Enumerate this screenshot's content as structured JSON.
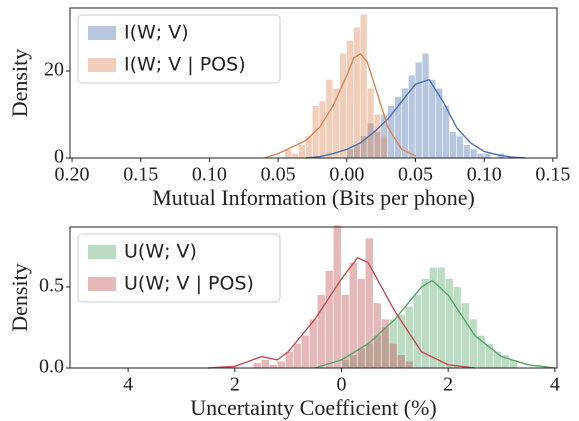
{
  "chart_data": [
    {
      "type": "histogram",
      "xlabel": "Mutual Information (Bits per phone)",
      "ylabel": "Density",
      "xlim": [
        -0.2015,
        0.153
      ],
      "ylim": [
        0,
        34.5
      ],
      "xticks": [
        {
          "value": -0.2,
          "label": "0.20"
        },
        {
          "value": -0.15,
          "label": "0.15"
        },
        {
          "value": -0.1,
          "label": "0.10"
        },
        {
          "value": -0.05,
          "label": "0.05"
        },
        {
          "value": 0,
          "label": "0.00"
        },
        0.05,
        {
          "value": 0.1,
          "label": "0.10"
        },
        0.15
      ],
      "yticks": [
        0,
        20
      ],
      "legend": "upper left",
      "series": [
        {
          "name": "I(W; V)",
          "color": "#4c72b0",
          "bins": [
            0.0,
            0.005,
            0.01,
            0.015,
            0.02,
            0.025,
            0.03,
            0.035,
            0.04,
            0.045,
            0.05,
            0.055,
            0.06,
            0.065,
            0.07,
            0.075,
            0.08,
            0.085,
            0.09,
            0.095,
            0.1,
            0.105,
            0.11,
            0.115
          ],
          "values": [
            2,
            3,
            5,
            8,
            6,
            10,
            12,
            14,
            16,
            19,
            22,
            24,
            18,
            16,
            12,
            6,
            5,
            3,
            2,
            1,
            1,
            0,
            1
          ],
          "kde_x": [
            -0.03,
            -0.02,
            -0.01,
            0,
            0.01,
            0.02,
            0.03,
            0.04,
            0.05,
            0.06,
            0.07,
            0.08,
            0.09,
            0.1,
            0.11,
            0.12,
            0.13
          ],
          "kde_y": [
            0,
            0.3,
            1,
            2,
            3.5,
            6,
            9,
            13,
            17,
            18,
            13,
            7,
            3.5,
            1.5,
            0.7,
            0.2,
            0
          ]
        },
        {
          "name": "I(W; V | POS)",
          "color": "#dd8452",
          "bins": [
            -0.045,
            -0.04,
            -0.035,
            -0.03,
            -0.025,
            -0.02,
            -0.015,
            -0.01,
            -0.005,
            0,
            0.005,
            0.01,
            0.015,
            0.02,
            0.025,
            0.03
          ],
          "values": [
            2,
            1,
            3,
            5,
            12,
            13,
            18,
            16,
            24,
            27,
            30,
            33,
            16,
            10,
            5
          ],
          "kde_x": [
            -0.06,
            -0.05,
            -0.04,
            -0.03,
            -0.02,
            -0.01,
            0,
            0.005,
            0.01,
            0.015,
            0.02,
            0.03,
            0.04,
            0.05
          ],
          "kde_y": [
            0,
            1,
            2.5,
            4,
            7,
            12,
            19,
            23,
            24,
            22,
            17,
            7,
            2,
            0.5
          ]
        }
      ]
    },
    {
      "type": "histogram",
      "xlabel": "Uncertainty Coefficient (%)",
      "ylabel": "Density",
      "xlim": [
        -5.09,
        4.04
      ],
      "ylim": [
        0,
        0.87
      ],
      "xticks": [
        {
          "value": -4,
          "label": "4"
        },
        {
          "value": -2,
          "label": "2"
        },
        0,
        2,
        4
      ],
      "yticks": [
        {
          "value": 0,
          "label": "0.0"
        },
        0.5
      ],
      "legend": "upper left",
      "series": [
        {
          "name": "U(W; V)",
          "color": "#55a868",
          "bins": [
            0.0,
            0.15,
            0.3,
            0.45,
            0.6,
            0.75,
            0.9,
            1.05,
            1.2,
            1.35,
            1.5,
            1.65,
            1.8,
            1.95,
            2.1,
            2.25,
            2.4,
            2.55,
            2.7,
            2.85,
            3.0,
            3.15,
            3.3
          ],
          "values": [
            0.05,
            0.08,
            0.12,
            0.15,
            0.2,
            0.25,
            0.3,
            0.33,
            0.38,
            0.45,
            0.55,
            0.62,
            0.62,
            0.55,
            0.5,
            0.4,
            0.3,
            0.2,
            0.15,
            0.1,
            0.08,
            0.05
          ],
          "kde_x": [
            -0.5,
            0,
            0.5,
            1,
            1.5,
            1.7,
            2,
            2.5,
            3,
            3.5,
            4
          ],
          "kde_y": [
            0,
            0.05,
            0.15,
            0.3,
            0.5,
            0.54,
            0.45,
            0.2,
            0.07,
            0.02,
            0
          ]
        },
        {
          "name": "U(W; V | POS)",
          "color": "#c44e52",
          "bins": [
            -1.65,
            -1.5,
            -1.35,
            -1.2,
            -1.05,
            -0.9,
            -0.75,
            -0.6,
            -0.45,
            -0.3,
            -0.15,
            0,
            0.15,
            0.3,
            0.45,
            0.6,
            0.75,
            0.9,
            1.05,
            1.2,
            1.35
          ],
          "values": [
            0.03,
            0.05,
            0.02,
            0.04,
            0.1,
            0.15,
            0.2,
            0.3,
            0.45,
            0.6,
            0.88,
            0.45,
            0.65,
            0.55,
            0.8,
            0.4,
            0.3,
            0.15,
            0.08,
            0.04
          ],
          "kde_x": [
            -2.5,
            -2,
            -1.5,
            -1.2,
            -1,
            -0.5,
            0,
            0.3,
            0.5,
            1,
            1.5,
            2,
            2.5
          ],
          "kde_y": [
            0,
            0.01,
            0.07,
            0.05,
            0.1,
            0.3,
            0.55,
            0.68,
            0.65,
            0.35,
            0.1,
            0.02,
            0
          ]
        }
      ]
    }
  ]
}
